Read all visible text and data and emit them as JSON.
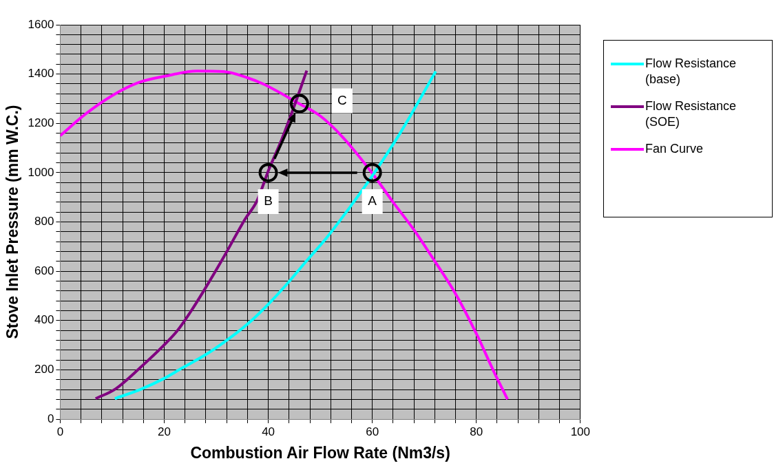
{
  "chart_data": {
    "type": "line",
    "xlabel": "Combustion Air Flow Rate (Nm3/s)",
    "ylabel": "Stove Inlet Pressure (mm W.C.)",
    "xlim": [
      0,
      100
    ],
    "ylim": [
      0,
      1600
    ],
    "xticks": [
      0,
      {
        "value": 4,
        "label": null
      },
      {
        "value": 8,
        "label": null
      },
      {
        "value": 12,
        "label": null
      },
      {
        "value": 16,
        "label": null
      },
      20,
      {
        "value": 24,
        "label": null
      },
      {
        "value": 28,
        "label": null
      },
      {
        "value": 32,
        "label": null
      },
      {
        "value": 36,
        "label": null
      },
      40,
      {
        "value": 44,
        "label": null
      },
      {
        "value": 48,
        "label": null
      },
      {
        "value": 52,
        "label": null
      },
      {
        "value": 56,
        "label": null
      },
      60,
      {
        "value": 64,
        "label": null
      },
      {
        "value": 68,
        "label": null
      },
      {
        "value": 72,
        "label": null
      },
      {
        "value": 76,
        "label": null
      },
      80,
      {
        "value": 84,
        "label": null
      },
      {
        "value": 88,
        "label": null
      },
      {
        "value": 92,
        "label": null
      },
      {
        "value": 96,
        "label": null
      },
      100
    ],
    "yticks": [
      0,
      {
        "value": 40,
        "label": null
      },
      {
        "value": 80,
        "label": null
      },
      {
        "value": 120,
        "label": null
      },
      {
        "value": 160,
        "label": null
      },
      200,
      {
        "value": 240,
        "label": null
      },
      {
        "value": 280,
        "label": null
      },
      {
        "value": 320,
        "label": null
      },
      {
        "value": 360,
        "label": null
      },
      400,
      {
        "value": 440,
        "label": null
      },
      {
        "value": 480,
        "label": null
      },
      {
        "value": 520,
        "label": null
      },
      {
        "value": 560,
        "label": null
      },
      600,
      {
        "value": 640,
        "label": null
      },
      {
        "value": 680,
        "label": null
      },
      {
        "value": 720,
        "label": null
      },
      {
        "value": 760,
        "label": null
      },
      800,
      {
        "value": 840,
        "label": null
      },
      {
        "value": 880,
        "label": null
      },
      {
        "value": 920,
        "label": null
      },
      {
        "value": 960,
        "label": null
      },
      1000,
      {
        "value": 1040,
        "label": null
      },
      {
        "value": 1080,
        "label": null
      },
      {
        "value": 1120,
        "label": null
      },
      {
        "value": 1160,
        "label": null
      },
      1200,
      {
        "value": 1240,
        "label": null
      },
      {
        "value": 1280,
        "label": null
      },
      {
        "value": 1320,
        "label": null
      },
      {
        "value": 1360,
        "label": null
      },
      1400,
      {
        "value": 1440,
        "label": null
      },
      {
        "value": 1480,
        "label": null
      },
      {
        "value": 1520,
        "label": null
      },
      {
        "value": 1560,
        "label": null
      },
      1600
    ],
    "grid": true,
    "legend": "right",
    "marker": "none",
    "line_style": "solid",
    "series": [
      {
        "name": "Flow Resistance (base)",
        "color": "#00ffff",
        "x": [
          10.5,
          15.6,
          19.8,
          23.5,
          28.1,
          33.2,
          36.9,
          40.1,
          43.3,
          47.4,
          51.2,
          55,
          59.9,
          65.4,
          72.2
        ],
        "values": [
          83,
          122,
          163,
          208,
          263,
          338,
          402,
          468,
          541,
          643,
          735,
          840,
          984,
          1162,
          1411
        ]
      },
      {
        "name": "Flow Resistance (SOE)",
        "color": "#800080",
        "x": [
          6.8,
          10.6,
          15.6,
          19.8,
          22.5,
          24.9,
          27.7,
          31.8,
          35.5,
          37.8,
          40.1,
          42.5,
          44.7,
          47.4
        ],
        "values": [
          83,
          122,
          213,
          297,
          358,
          430,
          524,
          671,
          810,
          884,
          1012,
          1130,
          1253,
          1414
        ]
      },
      {
        "name": "Fan Curve",
        "color": "#ff00ff",
        "x": [
          0,
          5,
          10.1,
          15,
          20.3,
          26.3,
          31.4,
          36,
          39.1,
          45.6,
          50,
          54.4,
          59.9,
          64,
          68.2,
          71.5,
          76.1,
          80.2,
          83.2,
          86
        ],
        "values": [
          1150,
          1240,
          1314,
          1365,
          1392,
          1412,
          1410,
          1385,
          1359,
          1284,
          1230,
          1142,
          1000,
          880,
          762,
          657,
          505,
          338,
          200,
          80
        ]
      }
    ],
    "annotations": [
      {
        "text": "A",
        "x": 60,
        "y": 1000
      },
      {
        "text": "B",
        "x": 40,
        "y": 1000
      },
      {
        "text": "C",
        "x": 46,
        "y": 1280
      }
    ]
  }
}
